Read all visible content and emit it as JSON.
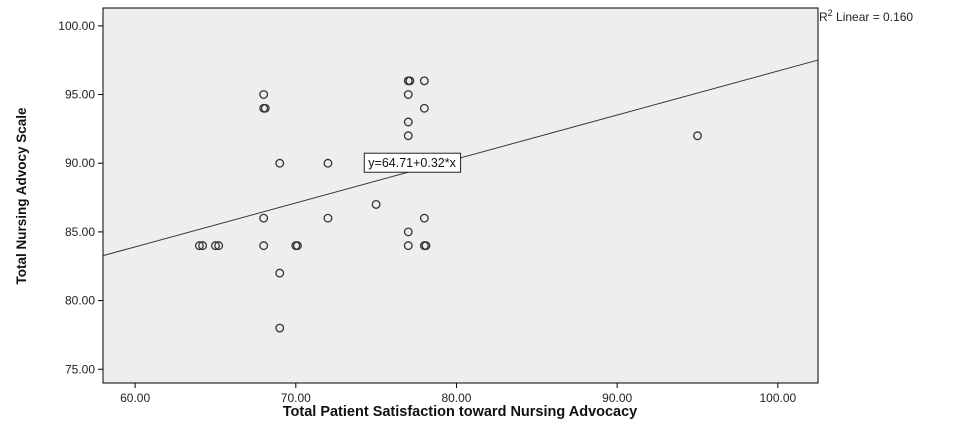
{
  "chart_data": {
    "type": "scatter",
    "title": "",
    "xlabel": "Total Patient Satisfaction toward Nursing Advocacy",
    "ylabel": "Total Nursing Advocy Scale",
    "xlim": [
      58,
      102.5
    ],
    "ylim": [
      74,
      101.3
    ],
    "x_ticks": [
      "60.00",
      "70.00",
      "80.00",
      "90.00",
      "100.00"
    ],
    "y_ticks": [
      "75.00",
      "80.00",
      "85.00",
      "90.00",
      "95.00",
      "100.00"
    ],
    "x_tick_values": [
      60,
      70,
      80,
      90,
      100
    ],
    "y_tick_values": [
      75,
      80,
      85,
      90,
      95,
      100
    ],
    "points": [
      {
        "x": 64,
        "y": 84
      },
      {
        "x": 64.2,
        "y": 84
      },
      {
        "x": 65,
        "y": 84
      },
      {
        "x": 65.2,
        "y": 84
      },
      {
        "x": 68,
        "y": 95
      },
      {
        "x": 68,
        "y": 94
      },
      {
        "x": 68.1,
        "y": 94
      },
      {
        "x": 68,
        "y": 86
      },
      {
        "x": 68,
        "y": 84
      },
      {
        "x": 69,
        "y": 90
      },
      {
        "x": 69,
        "y": 82
      },
      {
        "x": 69,
        "y": 78
      },
      {
        "x": 70,
        "y": 84
      },
      {
        "x": 70.1,
        "y": 84
      },
      {
        "x": 72,
        "y": 90
      },
      {
        "x": 72,
        "y": 86
      },
      {
        "x": 75,
        "y": 87
      },
      {
        "x": 77,
        "y": 96
      },
      {
        "x": 77.1,
        "y": 96
      },
      {
        "x": 77,
        "y": 95
      },
      {
        "x": 77,
        "y": 93
      },
      {
        "x": 77,
        "y": 92
      },
      {
        "x": 77,
        "y": 85
      },
      {
        "x": 77,
        "y": 84
      },
      {
        "x": 78,
        "y": 96
      },
      {
        "x": 78,
        "y": 94
      },
      {
        "x": 78,
        "y": 86
      },
      {
        "x": 78,
        "y": 84
      },
      {
        "x": 78.1,
        "y": 84
      },
      {
        "x": 95,
        "y": 92
      }
    ],
    "fit_line": {
      "intercept": 64.71,
      "slope": 0.32
    },
    "fit_label": "y=64.71+0.32*x",
    "fit_label_anchor": {
      "x": 77,
      "y": 90
    },
    "r2_label_prefix": "R",
    "r2_label_sup": "2",
    "r2_label_suffix": " Linear = 0.160",
    "grid": false,
    "plot_background": "#eeeeee",
    "point_color": "#333333",
    "line_color": "#333333"
  }
}
